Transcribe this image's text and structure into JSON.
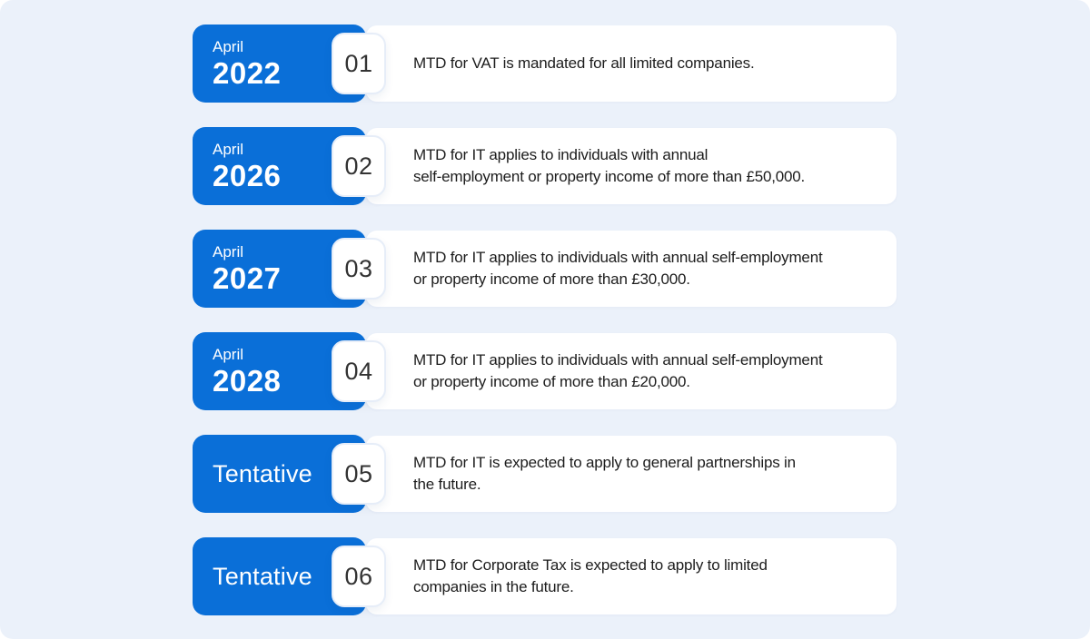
{
  "page": {
    "background_color": "#ebf1fa",
    "accent_color": "#0a6fd8",
    "card_color": "#ffffff"
  },
  "rows": [
    {
      "period_top": "April",
      "period_main": "2022",
      "number": "01",
      "desc_lines": [
        "MTD for VAT is mandated for all limited companies."
      ]
    },
    {
      "period_top": "April",
      "period_main": "2026",
      "number": "02",
      "desc_lines": [
        "MTD for IT applies to individuals with annual",
        "self-employment or property income of more than £50,000."
      ]
    },
    {
      "period_top": "April",
      "period_main": "2027",
      "number": "03",
      "desc_lines": [
        "MTD for IT applies to individuals with annual self-employment",
        "or property income of more than £30,000."
      ]
    },
    {
      "period_top": "April",
      "period_main": "2028",
      "number": "04",
      "desc_lines": [
        "MTD for IT applies to individuals with annual self-employment",
        "or property income of more than £20,000."
      ]
    },
    {
      "period_top": "",
      "period_main": "Tentative",
      "number": "05",
      "desc_lines": [
        "MTD for IT is expected to apply to general partnerships in",
        "the future."
      ]
    },
    {
      "period_top": "",
      "period_main": "Tentative",
      "number": "06",
      "desc_lines": [
        "MTD for Corporate Tax is expected to apply to limited",
        "companies in the future."
      ]
    }
  ]
}
